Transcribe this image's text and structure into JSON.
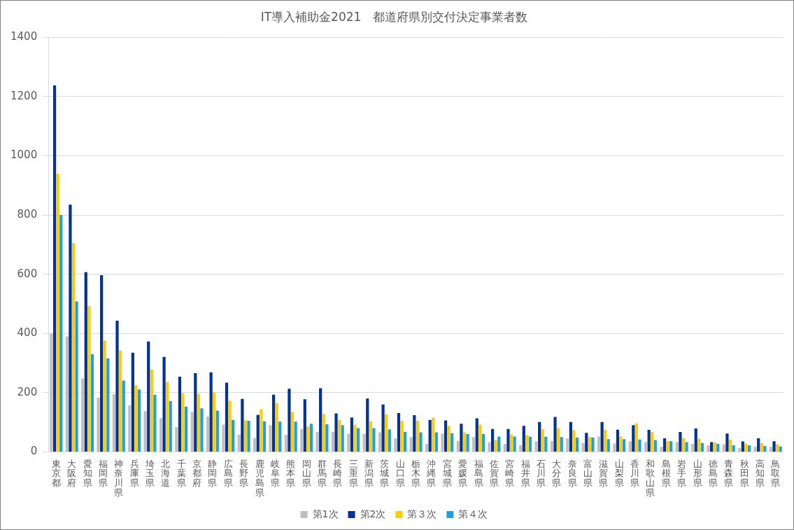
{
  "chart_data": {
    "type": "bar",
    "title": "IT導入補助金2021　都道府県別交付決定事業者数",
    "categories": [
      "東京都",
      "大阪府",
      "愛知県",
      "福岡県",
      "神奈川県",
      "兵庫県",
      "埼玉県",
      "北海道",
      "千葉県",
      "京都府",
      "静岡県",
      "広島県",
      "長野県",
      "鹿児島県",
      "岐阜県",
      "熊本県",
      "岡山県",
      "群馬県",
      "長崎県",
      "三重県",
      "新潟県",
      "茨城県",
      "山口県",
      "栃木県",
      "沖縄県",
      "宮城県",
      "愛媛県",
      "福島県",
      "佐賀県",
      "宮崎県",
      "福井県",
      "石川県",
      "大分県",
      "奈良県",
      "富山県",
      "滋賀県",
      "山梨県",
      "香川県",
      "和歌山県",
      "島根県",
      "岩手県",
      "山形県",
      "徳島県",
      "青森県",
      "秋田県",
      "高知県",
      "鳥取県"
    ],
    "series": [
      {
        "name": "第1次",
        "color": "#bfbfbf",
        "values": [
          400,
          390,
          248,
          183,
          195,
          157,
          138,
          114,
          84,
          135,
          119,
          92,
          58,
          47,
          90,
          57,
          77,
          67,
          68,
          61,
          61,
          66,
          45,
          50,
          27,
          62,
          37,
          50,
          33,
          27,
          23,
          36,
          37,
          45,
          30,
          52,
          28,
          36,
          33,
          17,
          33,
          27,
          22,
          25,
          13,
          17,
          17
        ]
      },
      {
        "name": "第2次",
        "color": "#003399",
        "values": [
          1238,
          835,
          607,
          597,
          443,
          335,
          373,
          321,
          254,
          266,
          269,
          234,
          179,
          125,
          193,
          213,
          178,
          215,
          130,
          116,
          180,
          160,
          131,
          124,
          108,
          106,
          95,
          113,
          77,
          77,
          88,
          101,
          118,
          101,
          64,
          101,
          75,
          90,
          74,
          46,
          67,
          79,
          33,
          62,
          35,
          46,
          36
        ]
      },
      {
        "name": "第３次",
        "color": "#ffcc00",
        "values": [
          940,
          705,
          493,
          376,
          342,
          225,
          278,
          236,
          198,
          196,
          201,
          173,
          107,
          144,
          165,
          135,
          86,
          128,
          108,
          92,
          103,
          127,
          105,
          105,
          115,
          88,
          66,
          92,
          40,
          59,
          57,
          77,
          80,
          73,
          50,
          75,
          52,
          96,
          67,
          37,
          47,
          44,
          32,
          41,
          28,
          30,
          26
        ]
      },
      {
        "name": "第４次",
        "color": "#1ca0e0",
        "values": [
          800,
          508,
          330,
          316,
          241,
          211,
          193,
          172,
          153,
          147,
          139,
          108,
          105,
          103,
          102,
          102,
          95,
          93,
          90,
          80,
          80,
          76,
          68,
          66,
          66,
          63,
          60,
          60,
          52,
          52,
          51,
          51,
          50,
          48,
          48,
          43,
          43,
          42,
          40,
          36,
          33,
          30,
          27,
          22,
          22,
          20,
          18
        ]
      }
    ],
    "ylim": [
      0,
      1400
    ],
    "yticks": [
      0,
      200,
      400,
      600,
      800,
      1000,
      1200,
      1400
    ],
    "grid": true,
    "legend": "bottom"
  }
}
